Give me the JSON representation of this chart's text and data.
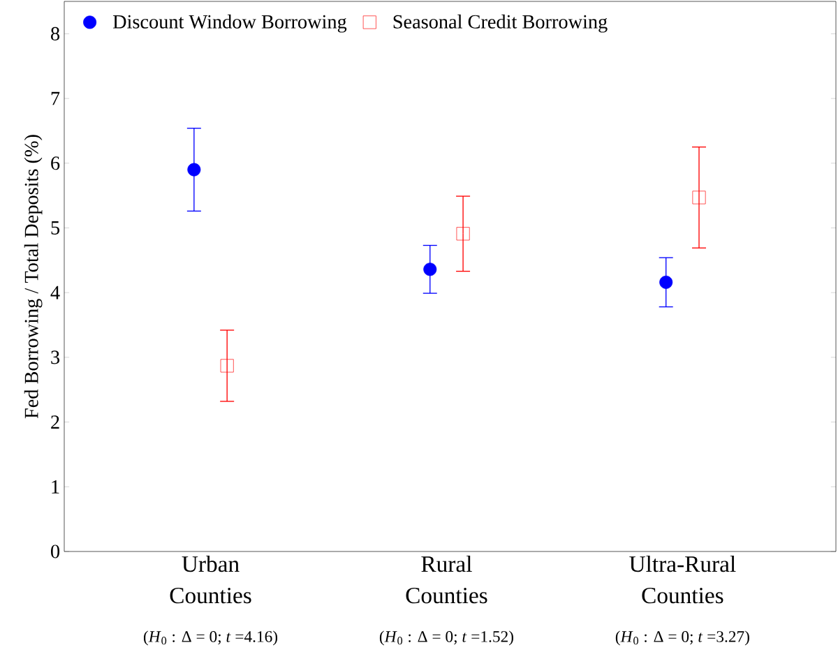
{
  "chart_data": {
    "type": "scatter",
    "ylabel": "Fed Borrowing / Total Deposits (%)",
    "categories": [
      "Urban Counties",
      "Rural Counties",
      "Ultra-Rural Counties"
    ],
    "series": [
      {
        "name": "Discount Window Borrowing",
        "color": "#0000ff",
        "marker": "circle",
        "values": [
          5.9,
          4.36,
          4.16
        ],
        "errors": [
          0.64,
          0.37,
          0.38
        ]
      },
      {
        "name": "Seasonal Credit Borrowing",
        "color": "#ff0000",
        "marker": "square",
        "values": [
          2.87,
          4.91,
          5.47
        ],
        "errors": [
          0.55,
          0.58,
          0.78
        ]
      }
    ],
    "ylim": [
      0,
      8.5
    ],
    "yticks": [
      0,
      1,
      2,
      3,
      4,
      5,
      6,
      7,
      8
    ],
    "legend": "top left",
    "grid": false,
    "annotations": [
      "(*H*$_{0}$ : Δ = 0; *t* =4.16)",
      "(*H*$_{0}$ : Δ = 0; *t* =1.52)",
      "(*H*$_{0}$ : Δ = 0; *t* =3.27)"
    ]
  }
}
